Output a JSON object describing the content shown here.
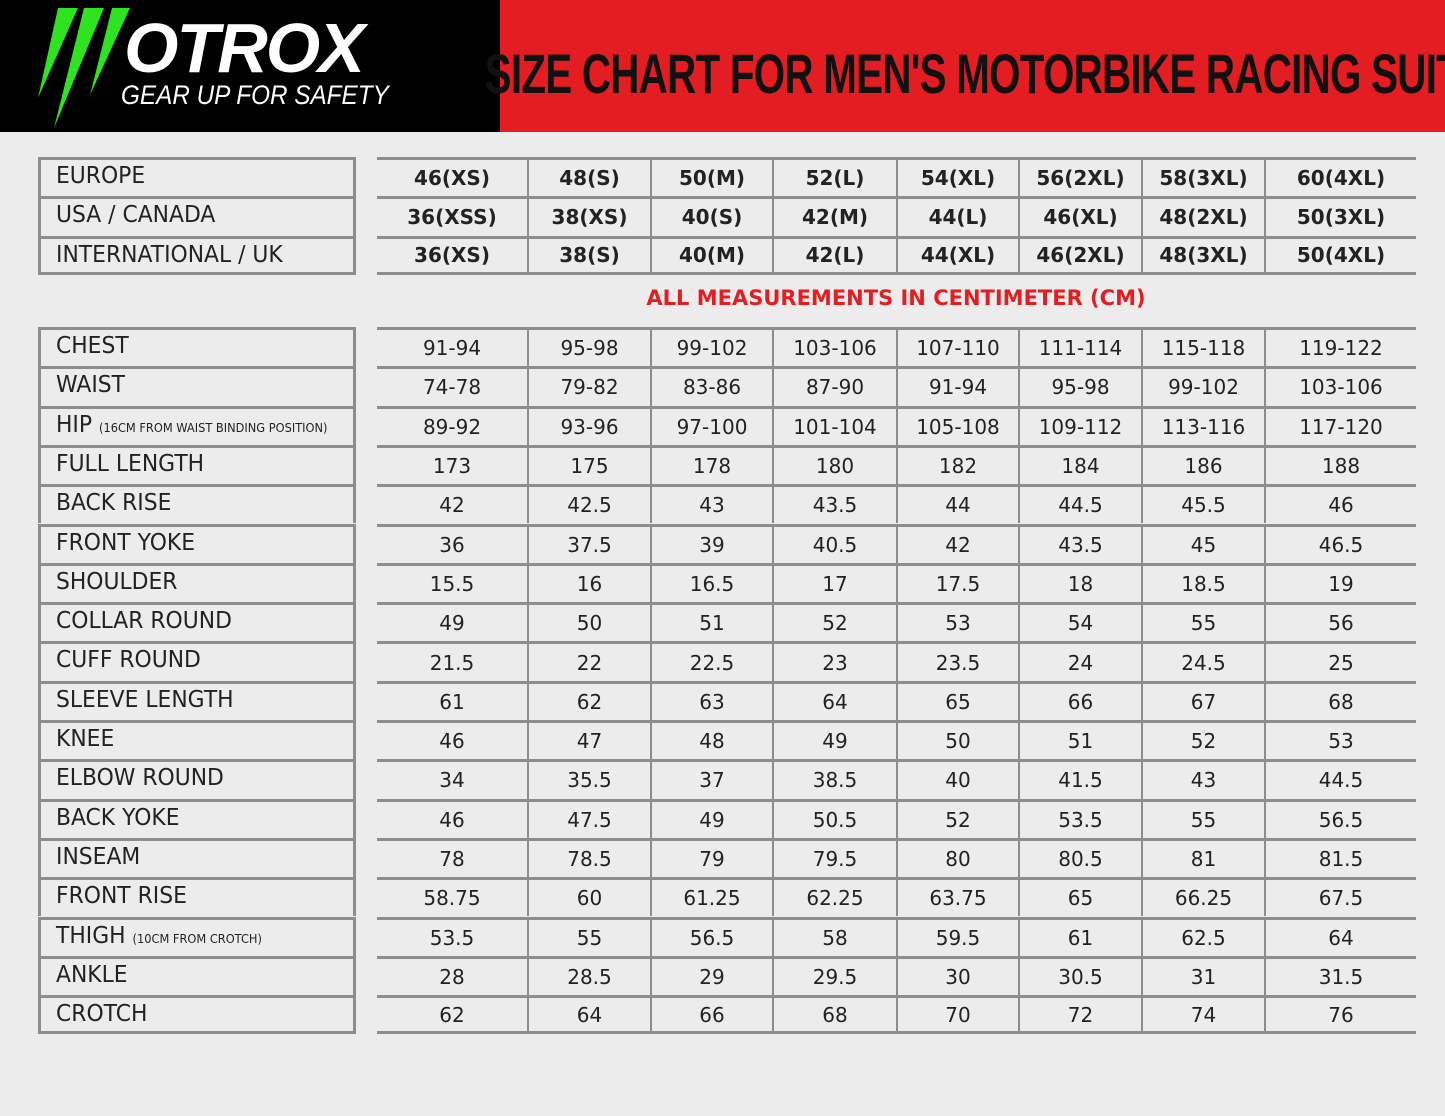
{
  "header": {
    "brand": "OTROX",
    "tagline": "GEAR UP FOR SAFETY",
    "title": "SIZE CHART FOR MEN'S MOTORBIKE RACING SUIT",
    "colors": {
      "logo_bg": "#000000",
      "title_bg": "#e41d23",
      "logo_accent": "#2ee31f"
    }
  },
  "size_table": [
    {
      "label": "EUROPE",
      "values": [
        "46(XS)",
        "48(S)",
        "50(M)",
        "52(L)",
        "54(XL)",
        "56(2XL)",
        "58(3XL)",
        "60(4XL)"
      ]
    },
    {
      "label": "USA / CANADA",
      "values": [
        "36(XSS)",
        "38(XS)",
        "40(S)",
        "42(M)",
        "44(L)",
        "46(XL)",
        "48(2XL)",
        "50(3XL)"
      ]
    },
    {
      "label": "INTERNATIONAL / UK",
      "values": [
        "36(XS)",
        "38(S)",
        "40(M)",
        "42(L)",
        "44(XL)",
        "46(2XL)",
        "48(3XL)",
        "50(4XL)"
      ]
    }
  ],
  "note": "ALL MEASUREMENTS IN CENTIMETER (CM)",
  "measure_table": [
    {
      "label": "CHEST",
      "values": [
        "91-94",
        "95-98",
        "99-102",
        "103-106",
        "107-110",
        "111-114",
        "115-118",
        "119-122"
      ]
    },
    {
      "label": "WAIST",
      "values": [
        "74-78",
        "79-82",
        "83-86",
        "87-90",
        "91-94",
        "95-98",
        "99-102",
        "103-106"
      ]
    },
    {
      "label": "HIP",
      "sublabel": "(16CM FROM WAIST BINDING POSITION)",
      "values": [
        "89-92",
        "93-96",
        "97-100",
        "101-104",
        "105-108",
        "109-112",
        "113-116",
        "117-120"
      ]
    },
    {
      "label": "FULL LENGTH",
      "values": [
        "173",
        "175",
        "178",
        "180",
        "182",
        "184",
        "186",
        "188"
      ]
    },
    {
      "label": "BACK RISE",
      "values": [
        "42",
        "42.5",
        "43",
        "43.5",
        "44",
        "44.5",
        "45.5",
        "46"
      ]
    },
    {
      "label": "FRONT YOKE",
      "values": [
        "36",
        "37.5",
        "39",
        "40.5",
        "42",
        "43.5",
        "45",
        "46.5"
      ]
    },
    {
      "label": "SHOULDER",
      "values": [
        "15.5",
        "16",
        "16.5",
        "17",
        "17.5",
        "18",
        "18.5",
        "19"
      ]
    },
    {
      "label": "COLLAR ROUND",
      "values": [
        "49",
        "50",
        "51",
        "52",
        "53",
        "54",
        "55",
        "56"
      ]
    },
    {
      "label": "CUFF ROUND",
      "values": [
        "21.5",
        "22",
        "22.5",
        "23",
        "23.5",
        "24",
        "24.5",
        "25"
      ]
    },
    {
      "label": "SLEEVE LENGTH",
      "values": [
        "61",
        "62",
        "63",
        "64",
        "65",
        "66",
        "67",
        "68"
      ]
    },
    {
      "label": "KNEE",
      "values": [
        "46",
        "47",
        "48",
        "49",
        "50",
        "51",
        "52",
        "53"
      ]
    },
    {
      "label": "ELBOW ROUND",
      "values": [
        "34",
        "35.5",
        "37",
        "38.5",
        "40",
        "41.5",
        "43",
        "44.5"
      ]
    },
    {
      "label": "BACK YOKE",
      "values": [
        "46",
        "47.5",
        "49",
        "50.5",
        "52",
        "53.5",
        "55",
        "56.5"
      ]
    },
    {
      "label": "INSEAM",
      "values": [
        "78",
        "78.5",
        "79",
        "79.5",
        "80",
        "80.5",
        "81",
        "81.5"
      ]
    },
    {
      "label": "FRONT RISE",
      "values": [
        "58.75",
        "60",
        "61.25",
        "62.25",
        "63.75",
        "65",
        "66.25",
        "67.5"
      ]
    },
    {
      "label": "THIGH",
      "sublabel": "(10CM FROM CROTCH)",
      "values": [
        "53.5",
        "55",
        "56.5",
        "58",
        "59.5",
        "61",
        "62.5",
        "64"
      ]
    },
    {
      "label": "ANKLE",
      "values": [
        "28",
        "28.5",
        "29",
        "29.5",
        "30",
        "30.5",
        "31",
        "31.5"
      ]
    },
    {
      "label": "CROTCH",
      "values": [
        "62",
        "64",
        "66",
        "68",
        "70",
        "72",
        "74",
        "76"
      ]
    }
  ]
}
